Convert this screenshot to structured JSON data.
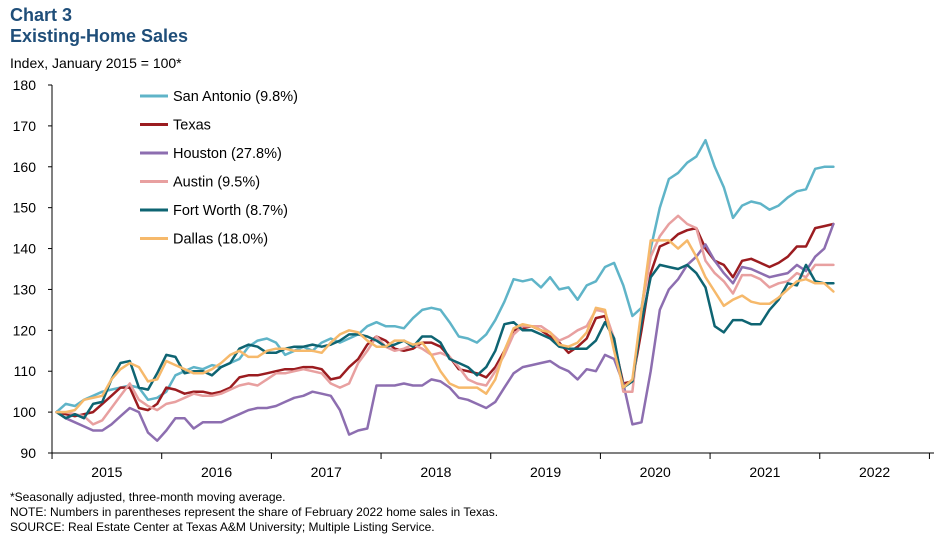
{
  "chart_data": {
    "type": "line",
    "title": "Chart 3",
    "subtitle": "Existing-Home Sales",
    "ylabel": "Index, January 2015 = 100*",
    "xlabel": "",
    "ylim": [
      90,
      180
    ],
    "yticks": [
      90,
      100,
      110,
      120,
      130,
      140,
      150,
      160,
      170,
      180
    ],
    "xlim": [
      2014.958,
      2023.0
    ],
    "xticks": [
      "2015",
      "2016",
      "2017",
      "2018",
      "2019",
      "2020",
      "2021",
      "2022"
    ],
    "series": [
      {
        "name": "San Antonio (9.8%)",
        "color": "#5fb4c8",
        "x": [
          2015.0,
          2015.083,
          2015.167,
          2015.25,
          2015.333,
          2015.417,
          2015.5,
          2015.583,
          2015.667,
          2015.75,
          2015.833,
          2015.917,
          2016.0,
          2016.083,
          2016.167,
          2016.25,
          2016.333,
          2016.417,
          2016.5,
          2016.583,
          2016.667,
          2016.75,
          2016.833,
          2016.917,
          2017.0,
          2017.083,
          2017.167,
          2017.25,
          2017.333,
          2017.417,
          2017.5,
          2017.583,
          2017.667,
          2017.75,
          2017.833,
          2017.917,
          2018.0,
          2018.083,
          2018.167,
          2018.25,
          2018.333,
          2018.417,
          2018.5,
          2018.583,
          2018.667,
          2018.75,
          2018.833,
          2018.917,
          2019.0,
          2019.083,
          2019.167,
          2019.25,
          2019.333,
          2019.417,
          2019.5,
          2019.583,
          2019.667,
          2019.75,
          2019.833,
          2019.917,
          2020.0,
          2020.083,
          2020.167,
          2020.25,
          2020.333,
          2020.417,
          2020.5,
          2020.583,
          2020.667,
          2020.75,
          2020.833,
          2020.917,
          2021.0,
          2021.083,
          2021.167,
          2021.25,
          2021.333,
          2021.417,
          2021.5,
          2021.583,
          2021.667,
          2021.75,
          2021.833,
          2021.917,
          2022.0,
          2022.083
        ],
        "values": [
          100,
          102,
          101.5,
          103,
          104,
          105,
          105.5,
          106,
          106.5,
          106,
          103,
          103.5,
          105,
          109,
          110,
          111,
          110.5,
          111.5,
          111,
          112,
          113,
          116,
          117.5,
          118,
          117,
          114,
          115,
          116,
          115,
          117,
          118,
          117,
          118,
          119,
          121,
          122,
          121,
          121,
          120.5,
          123,
          125,
          125.5,
          125,
          122,
          118.5,
          118,
          117,
          119,
          122.5,
          127,
          132.5,
          132,
          132.5,
          130.5,
          133,
          130,
          130.5,
          127.5,
          131,
          132,
          135.5,
          136.5,
          131,
          123.5,
          125.5,
          140,
          150,
          157,
          158.5,
          161,
          162.5,
          166.5,
          160,
          155,
          147.5,
          150.5,
          151.5,
          151,
          149.5,
          150.5,
          152.5,
          154,
          154.5,
          159.5,
          160,
          160
        ]
      },
      {
        "name": "Texas",
        "color": "#9b1c20",
        "x": [
          2015.0,
          2015.083,
          2015.167,
          2015.25,
          2015.333,
          2015.417,
          2015.5,
          2015.583,
          2015.667,
          2015.75,
          2015.833,
          2015.917,
          2016.0,
          2016.083,
          2016.167,
          2016.25,
          2016.333,
          2016.417,
          2016.5,
          2016.583,
          2016.667,
          2016.75,
          2016.833,
          2016.917,
          2017.0,
          2017.083,
          2017.167,
          2017.25,
          2017.333,
          2017.417,
          2017.5,
          2017.583,
          2017.667,
          2017.75,
          2017.833,
          2017.917,
          2018.0,
          2018.083,
          2018.167,
          2018.25,
          2018.333,
          2018.417,
          2018.5,
          2018.583,
          2018.667,
          2018.75,
          2018.833,
          2018.917,
          2019.0,
          2019.083,
          2019.167,
          2019.25,
          2019.333,
          2019.417,
          2019.5,
          2019.583,
          2019.667,
          2019.75,
          2019.833,
          2019.917,
          2020.0,
          2020.083,
          2020.167,
          2020.25,
          2020.333,
          2020.417,
          2020.5,
          2020.583,
          2020.667,
          2020.75,
          2020.833,
          2020.917,
          2021.0,
          2021.083,
          2021.167,
          2021.25,
          2021.333,
          2021.417,
          2021.5,
          2021.583,
          2021.667,
          2021.75,
          2021.833,
          2021.917,
          2022.0,
          2022.083
        ],
        "values": [
          100,
          99.5,
          99,
          99.5,
          100,
          102,
          104,
          106,
          106,
          101,
          100.5,
          102,
          106,
          105.5,
          104.5,
          105,
          105,
          104.5,
          105,
          106,
          108.5,
          109,
          109,
          109.5,
          110,
          110.5,
          110.5,
          111,
          111,
          110.5,
          108,
          108.5,
          111,
          113,
          116.5,
          118.5,
          117.5,
          115.5,
          115,
          115.5,
          117,
          117,
          116,
          113.5,
          110.5,
          110,
          109.5,
          108.5,
          111,
          115,
          120,
          120.5,
          121,
          120,
          118.5,
          117,
          114.5,
          116,
          118,
          123,
          123.5,
          117,
          107,
          107.5,
          120,
          134,
          140.5,
          141.5,
          143.5,
          144.5,
          145,
          140,
          137,
          136,
          133,
          137,
          137.5,
          136.5,
          135.5,
          136.5,
          138,
          140.5,
          140.5,
          145,
          145.5,
          146
        ]
      },
      {
        "name": "Houston (27.8%)",
        "color": "#8d6eb0",
        "x": [
          2015.0,
          2015.083,
          2015.167,
          2015.25,
          2015.333,
          2015.417,
          2015.5,
          2015.583,
          2015.667,
          2015.75,
          2015.833,
          2015.917,
          2016.0,
          2016.083,
          2016.167,
          2016.25,
          2016.333,
          2016.417,
          2016.5,
          2016.583,
          2016.667,
          2016.75,
          2016.833,
          2016.917,
          2017.0,
          2017.083,
          2017.167,
          2017.25,
          2017.333,
          2017.417,
          2017.5,
          2017.583,
          2017.667,
          2017.75,
          2017.833,
          2017.917,
          2018.0,
          2018.083,
          2018.167,
          2018.25,
          2018.333,
          2018.417,
          2018.5,
          2018.583,
          2018.667,
          2018.75,
          2018.833,
          2018.917,
          2019.0,
          2019.083,
          2019.167,
          2019.25,
          2019.333,
          2019.417,
          2019.5,
          2019.583,
          2019.667,
          2019.75,
          2019.833,
          2019.917,
          2020.0,
          2020.083,
          2020.167,
          2020.25,
          2020.333,
          2020.417,
          2020.5,
          2020.583,
          2020.667,
          2020.75,
          2020.833,
          2020.917,
          2021.0,
          2021.083,
          2021.167,
          2021.25,
          2021.333,
          2021.417,
          2021.5,
          2021.583,
          2021.667,
          2021.75,
          2021.833,
          2021.917,
          2022.0,
          2022.083
        ],
        "values": [
          100,
          98.5,
          97.5,
          96.5,
          95.5,
          95.5,
          97,
          99,
          101,
          100,
          95,
          93,
          95.5,
          98.5,
          98.5,
          96,
          97.5,
          97.5,
          97.5,
          98.5,
          99.5,
          100.5,
          101,
          101,
          101.5,
          102.5,
          103.5,
          104,
          105,
          104.5,
          104,
          100.5,
          94.5,
          95.5,
          96,
          106.5,
          106.5,
          106.5,
          107,
          106.5,
          106.5,
          108,
          107.5,
          106,
          103.5,
          103,
          102,
          101,
          102.5,
          106,
          109.5,
          111,
          111.5,
          112,
          112.5,
          111,
          110,
          108,
          110.5,
          110,
          114,
          113,
          107,
          97,
          97.5,
          110,
          125,
          130,
          132.5,
          136,
          138,
          141,
          137,
          134,
          131.5,
          135.5,
          135,
          134,
          133,
          133.5,
          134,
          136,
          134.5,
          138,
          140,
          146
        ]
      },
      {
        "name": "Austin (9.5%)",
        "color": "#e8a0a0",
        "x": [
          2015.0,
          2015.083,
          2015.167,
          2015.25,
          2015.333,
          2015.417,
          2015.5,
          2015.583,
          2015.667,
          2015.75,
          2015.833,
          2015.917,
          2016.0,
          2016.083,
          2016.167,
          2016.25,
          2016.333,
          2016.417,
          2016.5,
          2016.583,
          2016.667,
          2016.75,
          2016.833,
          2016.917,
          2017.0,
          2017.083,
          2017.167,
          2017.25,
          2017.333,
          2017.417,
          2017.5,
          2017.583,
          2017.667,
          2017.75,
          2017.833,
          2017.917,
          2018.0,
          2018.083,
          2018.167,
          2018.25,
          2018.333,
          2018.417,
          2018.5,
          2018.583,
          2018.667,
          2018.75,
          2018.833,
          2018.917,
          2019.0,
          2019.083,
          2019.167,
          2019.25,
          2019.333,
          2019.417,
          2019.5,
          2019.583,
          2019.667,
          2019.75,
          2019.833,
          2019.917,
          2020.0,
          2020.083,
          2020.167,
          2020.25,
          2020.333,
          2020.417,
          2020.5,
          2020.583,
          2020.667,
          2020.75,
          2020.833,
          2020.917,
          2021.0,
          2021.083,
          2021.167,
          2021.25,
          2021.333,
          2021.417,
          2021.5,
          2021.583,
          2021.667,
          2021.75,
          2021.833,
          2021.917,
          2022.0,
          2022.083
        ],
        "values": [
          100,
          100,
          99.5,
          99,
          97,
          98,
          101,
          104,
          107,
          103,
          101.5,
          100.5,
          102,
          102.5,
          103.5,
          104.5,
          104,
          104,
          104.5,
          105.5,
          106.5,
          107,
          106.5,
          108,
          109.5,
          109.5,
          110,
          110.5,
          110,
          109.5,
          107,
          106,
          107,
          112,
          115,
          118.5,
          116,
          115,
          115.5,
          116.5,
          115.5,
          114,
          114.5,
          113.5,
          111,
          108,
          107,
          106.5,
          110,
          114,
          119,
          121,
          121,
          121,
          119.5,
          117.5,
          118.5,
          120,
          121,
          125,
          124.5,
          118,
          105,
          105,
          125,
          138,
          143,
          146,
          148,
          146,
          145,
          137,
          134,
          132,
          129,
          133.5,
          133.5,
          132.5,
          130.5,
          131.5,
          132,
          134,
          133,
          136,
          136,
          136
        ]
      },
      {
        "name": "Fort Worth (8.7%)",
        "color": "#0e6472",
        "x": [
          2015.0,
          2015.083,
          2015.167,
          2015.25,
          2015.333,
          2015.417,
          2015.5,
          2015.583,
          2015.667,
          2015.75,
          2015.833,
          2015.917,
          2016.0,
          2016.083,
          2016.167,
          2016.25,
          2016.333,
          2016.417,
          2016.5,
          2016.583,
          2016.667,
          2016.75,
          2016.833,
          2016.917,
          2017.0,
          2017.083,
          2017.167,
          2017.25,
          2017.333,
          2017.417,
          2017.5,
          2017.583,
          2017.667,
          2017.75,
          2017.833,
          2017.917,
          2018.0,
          2018.083,
          2018.167,
          2018.25,
          2018.333,
          2018.417,
          2018.5,
          2018.583,
          2018.667,
          2018.75,
          2018.833,
          2018.917,
          2019.0,
          2019.083,
          2019.167,
          2019.25,
          2019.333,
          2019.417,
          2019.5,
          2019.583,
          2019.667,
          2019.75,
          2019.833,
          2019.917,
          2020.0,
          2020.083,
          2020.167,
          2020.25,
          2020.333,
          2020.417,
          2020.5,
          2020.583,
          2020.667,
          2020.75,
          2020.833,
          2020.917,
          2021.0,
          2021.083,
          2021.167,
          2021.25,
          2021.333,
          2021.417,
          2021.5,
          2021.583,
          2021.667,
          2021.75,
          2021.833,
          2021.917,
          2022.0,
          2022.083
        ],
        "values": [
          100,
          98.5,
          99.5,
          98.5,
          102,
          102.5,
          108,
          112,
          112.5,
          106,
          105.5,
          109.5,
          114,
          113.5,
          109.5,
          110,
          110,
          109,
          111,
          112,
          115.5,
          116.5,
          116,
          114.5,
          114.5,
          115.5,
          116,
          116,
          116.5,
          116,
          116.5,
          117.5,
          119,
          119,
          118.5,
          117.5,
          116,
          116.5,
          117.5,
          116,
          118.5,
          118.5,
          117,
          113,
          112,
          111,
          109,
          111,
          115,
          121.5,
          122,
          120,
          120,
          119,
          118,
          116,
          115.5,
          115.5,
          115.5,
          117.5,
          122,
          118,
          106,
          107.5,
          122,
          133,
          136,
          135.5,
          135,
          136,
          134,
          130.5,
          121,
          119.5,
          122.5,
          122.5,
          121.5,
          121.5,
          125,
          127.5,
          131.5,
          131,
          136,
          132,
          131.5,
          131.5
        ]
      },
      {
        "name": "Dallas (18.0%)",
        "color": "#f6b96b",
        "x": [
          2015.0,
          2015.083,
          2015.167,
          2015.25,
          2015.333,
          2015.417,
          2015.5,
          2015.583,
          2015.667,
          2015.75,
          2015.833,
          2015.917,
          2016.0,
          2016.083,
          2016.167,
          2016.25,
          2016.333,
          2016.417,
          2016.5,
          2016.583,
          2016.667,
          2016.75,
          2016.833,
          2016.917,
          2017.0,
          2017.083,
          2017.167,
          2017.25,
          2017.333,
          2017.417,
          2017.5,
          2017.583,
          2017.667,
          2017.75,
          2017.833,
          2017.917,
          2018.0,
          2018.083,
          2018.167,
          2018.25,
          2018.333,
          2018.417,
          2018.5,
          2018.583,
          2018.667,
          2018.75,
          2018.833,
          2018.917,
          2019.0,
          2019.083,
          2019.167,
          2019.25,
          2019.333,
          2019.417,
          2019.5,
          2019.583,
          2019.667,
          2019.75,
          2019.833,
          2019.917,
          2020.0,
          2020.083,
          2020.167,
          2020.25,
          2020.333,
          2020.417,
          2020.5,
          2020.583,
          2020.667,
          2020.75,
          2020.833,
          2020.917,
          2021.0,
          2021.083,
          2021.167,
          2021.25,
          2021.333,
          2021.417,
          2021.5,
          2021.583,
          2021.667,
          2021.75,
          2021.833,
          2021.917,
          2022.0,
          2022.083
        ],
        "values": [
          100,
          100,
          100.5,
          103,
          103.5,
          104,
          108,
          110.5,
          112,
          111,
          107.5,
          108,
          112.5,
          111.5,
          110.5,
          109.5,
          109.5,
          110.5,
          112,
          114,
          115,
          113.5,
          113.5,
          115,
          115.5,
          115.5,
          115,
          115,
          115,
          114.5,
          117,
          119,
          120,
          119.5,
          117.5,
          116,
          116,
          117.5,
          117.5,
          116.5,
          117,
          114,
          110,
          107,
          106,
          106,
          106,
          104.5,
          108,
          115,
          120.5,
          121.5,
          121,
          120,
          119.5,
          116.5,
          116,
          117,
          119.5,
          125.5,
          125,
          115,
          106,
          108,
          125,
          142,
          142,
          142,
          140,
          142,
          138,
          133,
          129.5,
          126,
          127.5,
          128.5,
          127,
          126.5,
          126.5,
          128,
          130,
          132,
          132.5,
          131.5,
          131.5,
          129.5
        ]
      }
    ]
  },
  "notes": {
    "line1": "*Seasonally adjusted, three-month moving average.",
    "line2": "NOTE: Numbers in parentheses represent the share of February 2022 home sales in Texas.",
    "line3": "SOURCE: Real Estate Center at Texas A&M University; Multiple Listing Service."
  }
}
